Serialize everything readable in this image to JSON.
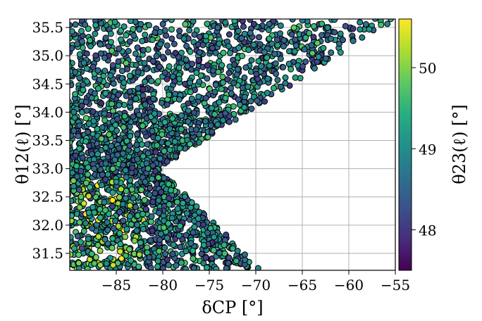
{
  "chart_data": {
    "type": "scatter",
    "xlabel": "δCP [°]",
    "ylabel": "θ12(ℓ) [°]",
    "colorbar_label": "θ23(ℓ) [°]",
    "xlim": [
      -90,
      -55
    ],
    "ylim": [
      31.2,
      35.65
    ],
    "x_ticks": [
      -85,
      -80,
      -75,
      -70,
      -65,
      -60,
      -55
    ],
    "x_tick_labels": [
      "−85",
      "−80",
      "−75",
      "−70",
      "−65",
      "−60",
      "−55"
    ],
    "y_ticks": [
      31.5,
      32.0,
      32.5,
      33.0,
      33.5,
      34.0,
      34.5,
      35.0,
      35.5
    ],
    "y_tick_labels": [
      "31.5",
      "32.0",
      "32.5",
      "33.0",
      "33.5",
      "34.0",
      "34.5",
      "35.0",
      "35.5"
    ],
    "color_range": [
      47.5,
      50.6
    ],
    "colorbar_ticks": [
      48,
      49,
      50
    ],
    "colorbar_tick_labels": [
      "48",
      "49",
      "50"
    ],
    "colormap": "viridis",
    "marker_edge_color": "#000000",
    "grid": true,
    "region": {
      "description_points_x": [
        -90,
        -55,
        -62,
        -80.5,
        -69.5,
        -90
      ],
      "description_points_y": [
        35.65,
        35.65,
        35.0,
        33.0,
        31.25,
        31.25
      ]
    }
  }
}
